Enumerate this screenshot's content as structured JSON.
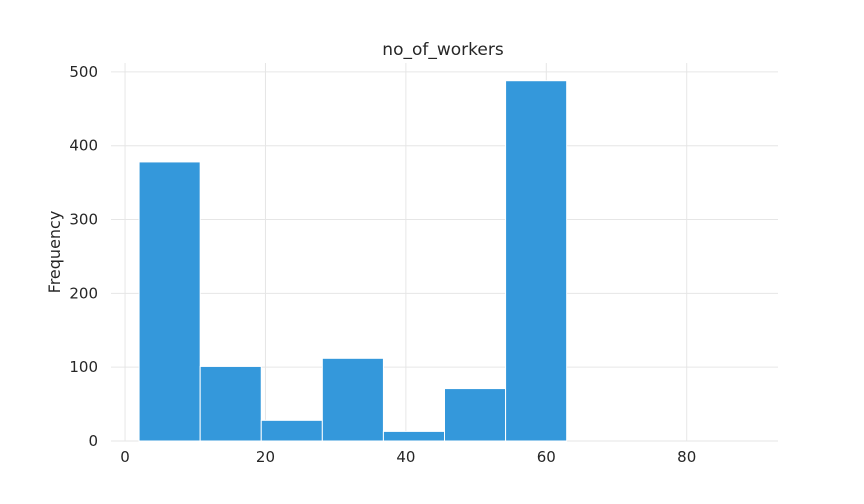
{
  "chart_data": {
    "type": "bar",
    "title": "no_of_workers",
    "xlabel": "",
    "ylabel": "Frequency",
    "xlim": [
      -2,
      93
    ],
    "ylim": [
      0,
      512
    ],
    "grid": true,
    "legend": "none",
    "x_ticks": [
      0,
      20,
      40,
      60,
      80
    ],
    "y_ticks": [
      0,
      100,
      200,
      300,
      400,
      500
    ],
    "bin_edges": [
      2,
      10.7,
      19.4,
      28.1,
      36.8,
      45.5,
      54.2,
      62.9
    ],
    "values": [
      378,
      101,
      28,
      112,
      13,
      71,
      488
    ],
    "bar_color": "#3498db",
    "grid_color": "#e6e6e6",
    "text_color": "#262626"
  }
}
